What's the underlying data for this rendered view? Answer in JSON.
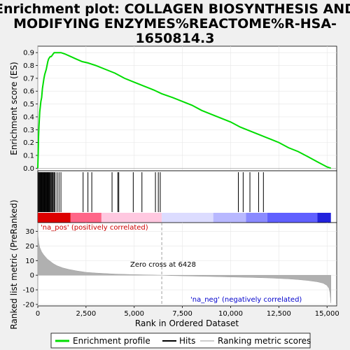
{
  "chart_data": {
    "type": "line",
    "title_lines": [
      "Enrichment plot: COLLAGEN BIOSYNTHESIS AND",
      "MODIFYING ENZYMES%REACTOME%R-HSA-",
      "1650814.3"
    ],
    "es_panel": {
      "ylabel": "Enrichment score (ES)",
      "ylim": [
        -0.02,
        0.95
      ],
      "yticks": [
        "0.0",
        "0.1",
        "0.2",
        "0.3",
        "0.4",
        "0.5",
        "0.6",
        "0.7",
        "0.8",
        "0.9"
      ],
      "ytick_values": [
        0,
        0.1,
        0.2,
        0.3,
        0.4,
        0.5,
        0.6,
        0.7,
        0.8,
        0.9
      ],
      "series_name": "Enrichment profile",
      "color": "#00dd00",
      "x": [
        0,
        20,
        40,
        60,
        80,
        100,
        130,
        160,
        200,
        240,
        280,
        320,
        360,
        400,
        440,
        480,
        520,
        560,
        600,
        650,
        700,
        750,
        800,
        850,
        900,
        950,
        1000,
        1050,
        1100,
        1200,
        1400,
        1700,
        2000,
        2300,
        2600,
        2800,
        3000,
        3500,
        4000,
        4500,
        5000,
        5500,
        6000,
        6428,
        7000,
        7500,
        8000,
        8500,
        9000,
        9500,
        10000,
        10500,
        11000,
        11500,
        12000,
        12500,
        13000,
        13500,
        14000,
        14500,
        15000,
        15200
      ],
      "y": [
        0.0,
        0.12,
        0.25,
        0.33,
        0.38,
        0.44,
        0.48,
        0.52,
        0.55,
        0.62,
        0.66,
        0.7,
        0.73,
        0.75,
        0.77,
        0.8,
        0.83,
        0.85,
        0.86,
        0.87,
        0.87,
        0.88,
        0.89,
        0.9,
        0.9,
        0.9,
        0.9,
        0.9,
        0.9,
        0.9,
        0.89,
        0.87,
        0.85,
        0.83,
        0.82,
        0.81,
        0.8,
        0.77,
        0.74,
        0.7,
        0.67,
        0.64,
        0.61,
        0.58,
        0.55,
        0.52,
        0.49,
        0.45,
        0.42,
        0.39,
        0.36,
        0.32,
        0.29,
        0.26,
        0.23,
        0.2,
        0.16,
        0.13,
        0.09,
        0.05,
        0.01,
        0.0
      ]
    },
    "hits_panel": {
      "series_name": "Hits",
      "positions": [
        20,
        60,
        90,
        120,
        150,
        180,
        210,
        240,
        270,
        300,
        330,
        360,
        390,
        420,
        450,
        480,
        510,
        540,
        570,
        600,
        640,
        680,
        720,
        760,
        800,
        850,
        900,
        1000,
        1100,
        1200,
        2350,
        2600,
        2800,
        3850,
        4150,
        4200,
        4950,
        5400,
        6100,
        6250,
        6350,
        10400,
        10650,
        11000,
        11450,
        11700
      ]
    },
    "rank_panel": {
      "ylabel": "Ranked list metric (PreRanked)",
      "xlabel": "Rank in Ordered Dataset",
      "series_name": "Ranking metric scores",
      "ylim": [
        -21,
        36
      ],
      "yticks": [
        "-20",
        "-10",
        "0",
        "10",
        "20",
        "30"
      ],
      "ytick_values": [
        -20,
        -10,
        0,
        10,
        20,
        30
      ],
      "x": [
        0,
        50,
        100,
        200,
        300,
        400,
        500,
        600,
        800,
        1000,
        1300,
        1600,
        2000,
        2500,
        3000,
        4000,
        5000,
        6000,
        6428,
        7000,
        8000,
        9000,
        10000,
        11000,
        12000,
        13000,
        13500,
        14000,
        14500,
        14800,
        15000,
        15100,
        15150,
        15200
      ],
      "y": [
        28,
        22,
        19,
        16,
        14,
        12.5,
        11,
        10,
        8,
        6.5,
        5,
        4,
        3,
        2,
        1.5,
        0.8,
        0.4,
        0.1,
        0,
        -0.3,
        -0.6,
        -0.9,
        -1.2,
        -1.5,
        -1.9,
        -2.5,
        -3,
        -3.6,
        -4.5,
        -5.5,
        -7,
        -9,
        -12,
        -19
      ]
    },
    "xlim": [
      0,
      15500
    ],
    "xticks": [
      "0",
      "2,500",
      "5,000",
      "7,500",
      "10,000",
      "12,500",
      "15,000"
    ],
    "xtick_values": [
      0,
      2500,
      5000,
      7500,
      10000,
      12500,
      15000
    ],
    "annotations": {
      "pos_label": "'na_pos' (positively correlated)",
      "neg_label": "'na_neg' (negatively correlated)",
      "zero_cross": "Zero cross at 6428",
      "zero_cross_value": 6428
    },
    "legend": {
      "entries": [
        "Enrichment profile",
        "Hits",
        "Ranking metric scores"
      ],
      "placement": "bottom"
    }
  }
}
